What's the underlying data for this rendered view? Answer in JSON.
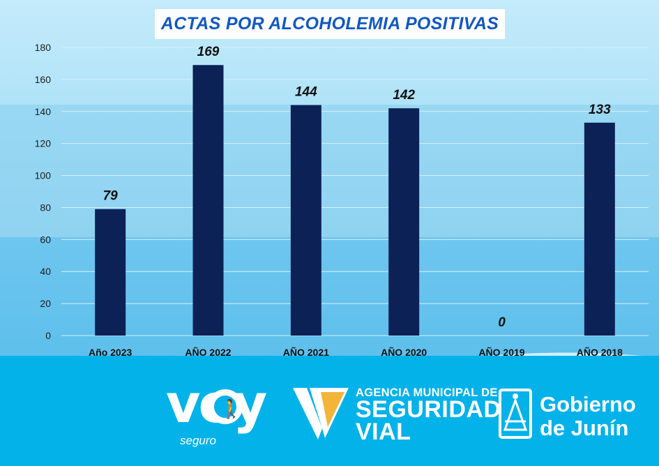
{
  "title": "ACTAS POR ALCOHOLEMIA POSITIVAS",
  "chart_data": {
    "type": "bar",
    "title": "ACTAS POR ALCOHOLEMIA POSITIVAS",
    "categories": [
      "Año 2023",
      "AÑO 2022",
      "AÑO 2021",
      "AÑO 2020",
      "AÑO 2019",
      "AÑO 2018"
    ],
    "values": [
      79,
      169,
      144,
      142,
      0,
      133
    ],
    "value_labels": [
      "79",
      "169",
      "144",
      "142",
      "0",
      "133"
    ],
    "yticks": [
      "0",
      "20",
      "40",
      "60",
      "80",
      "100",
      "120",
      "140",
      "160",
      "180"
    ],
    "ylim": [
      0,
      180
    ],
    "grid": true,
    "bar_color": "#0c2156"
  },
  "logos": {
    "voy": {
      "text": "voy",
      "sub": "seguro"
    },
    "agencia": {
      "line1": "AGENCIA MUNICIPAL DE",
      "line2": "SEGURIDAD",
      "line3": "VIAL"
    },
    "junin": {
      "line1": "Gobierno",
      "line2": "de Junín"
    }
  },
  "colors": {
    "title": "#1158c2",
    "footer": "#04b2ea",
    "v_gold": "#f2b53a"
  }
}
